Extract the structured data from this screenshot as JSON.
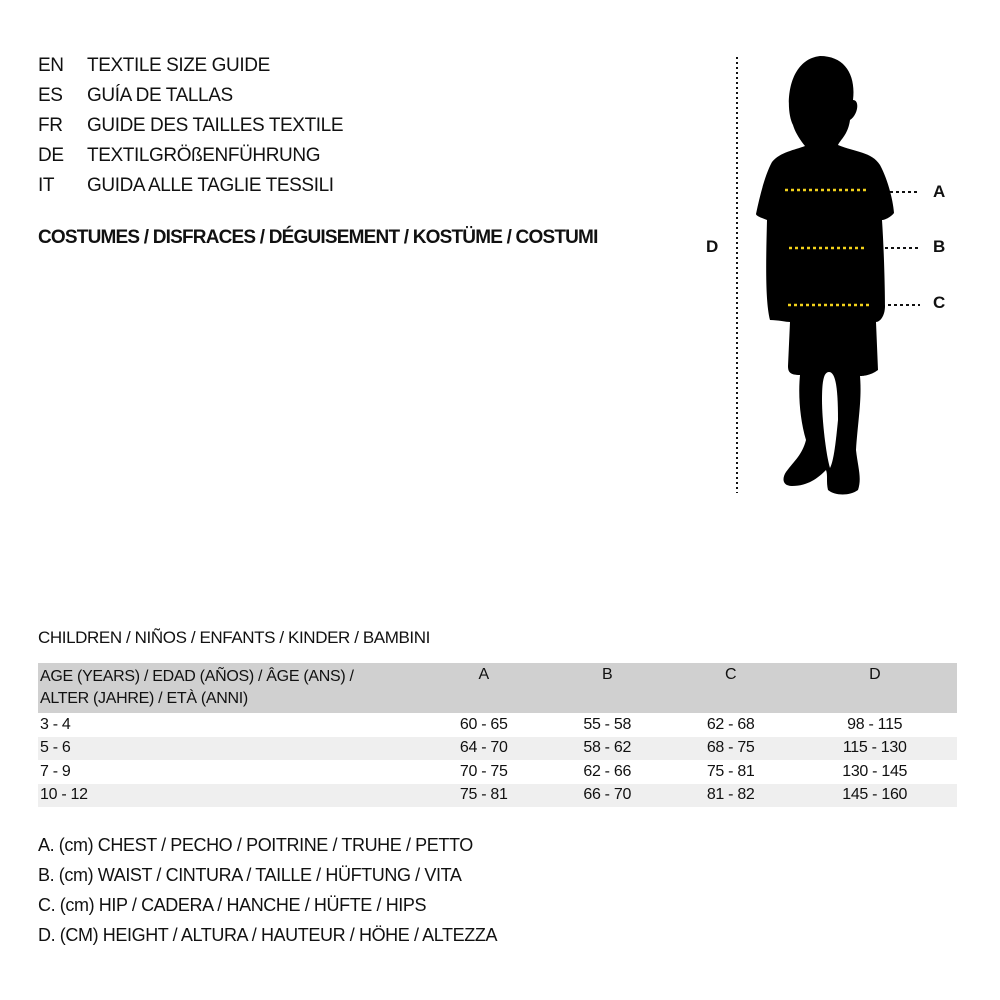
{
  "titles": [
    {
      "code": "EN",
      "label": "TEXTILE SIZE GUIDE"
    },
    {
      "code": "ES",
      "label": "GUÍA DE TALLAS"
    },
    {
      "code": "FR",
      "label": "GUIDE DES TAILLES TEXTILE"
    },
    {
      "code": "DE",
      "label": "TEXTILGRÖßENFÜHRUNG"
    },
    {
      "code": "IT",
      "label": "GUIDA ALLE TAGLIE TESSILI"
    }
  ],
  "category": "COSTUMES / DISFRACES / DÉGUISEMENT / KOSTÜME / COSTUMI",
  "figure": {
    "labels": {
      "a": "A",
      "b": "B",
      "c": "C",
      "d": "D"
    },
    "colors": {
      "silhouette": "#000000",
      "measure_line": "#f2d21b"
    }
  },
  "table": {
    "caption": "CHILDREN / NIÑOS / ENFANTS / KINDER / BAMBINI",
    "header_line1": "AGE (YEARS) / EDAD (AÑOS) / ÂGE (ANS) /",
    "header_line2": "ALTER (JAHRE) / ETÀ (ANNI)",
    "columns": [
      "A",
      "B",
      "C",
      "D"
    ],
    "rows": [
      [
        "3 - 4",
        "60 - 65",
        "55 - 58",
        "62 - 68",
        "98 - 115"
      ],
      [
        "5 - 6",
        "64 - 70",
        "58 - 62",
        "68 - 75",
        "115 - 130"
      ],
      [
        "7 - 9",
        "70 - 75",
        "62 - 66",
        "75 - 81",
        "130 - 145"
      ],
      [
        "10 - 12",
        "75 - 81",
        "66 - 70",
        "81 - 82",
        "145 - 160"
      ]
    ]
  },
  "legend": [
    "A. (cm) CHEST / PECHO / POITRINE / TRUHE / PETTO",
    "B. (cm) WAIST / CINTURA / TAILLE / HÜFTUNG / VITA",
    "C. (cm) HIP / CADERA / HANCHE / HÜFTE / HIPS",
    "D. (CM) HEIGHT / ALTURA / HAUTEUR / HÖHE / ALTEZZA"
  ]
}
